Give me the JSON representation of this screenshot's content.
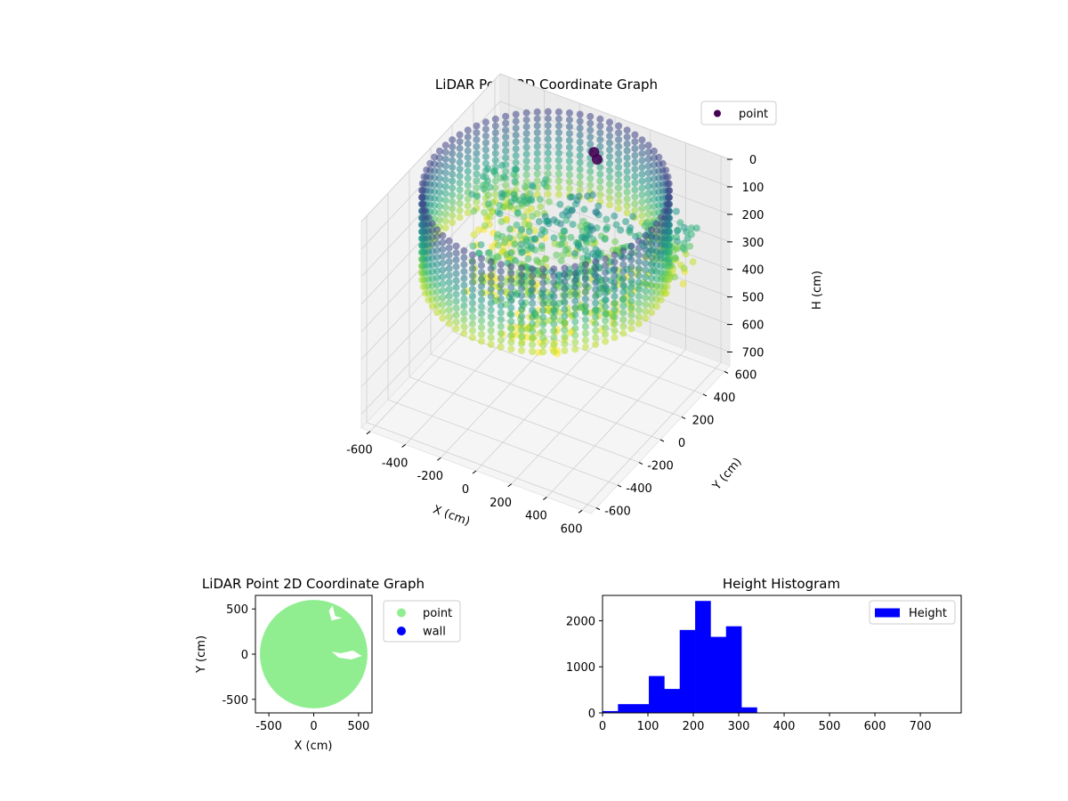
{
  "chart_data": [
    {
      "type": "scatter3d",
      "title": "LiDAR Point 3D Coordinate Graph",
      "xlabel": "X (cm)",
      "ylabel": "Y (cm)",
      "zlabel": "H (cm)",
      "xlim": [
        -650,
        650
      ],
      "ylim": [
        -650,
        650
      ],
      "zlim": [
        0,
        750
      ],
      "z_inverted": true,
      "xticks": [
        -600,
        -400,
        -200,
        0,
        200,
        400,
        600
      ],
      "yticks": [
        -600,
        -400,
        -200,
        0,
        200,
        400,
        600
      ],
      "zticks": [
        0,
        100,
        200,
        300,
        400,
        500,
        600,
        700
      ],
      "colormap": "viridis",
      "legend": [
        {
          "label": "point",
          "color": "#440154"
        }
      ],
      "legend_loc": "upper-right",
      "wall": {
        "radius": 600,
        "h_min": 0,
        "h_max": 300
      },
      "clusters": [
        {
          "x": -150,
          "y": -100,
          "h": 250
        },
        {
          "x": 100,
          "y": 150,
          "h": 200
        },
        {
          "x": 350,
          "y": -100,
          "h": 230
        },
        {
          "x": -350,
          "y": 250,
          "h": 260
        },
        {
          "x": 150,
          "y": -300,
          "h": 280
        },
        {
          "x": 450,
          "y": 300,
          "h": 240
        }
      ],
      "highlight_points": [
        {
          "x": 50,
          "y": 400,
          "h": 40
        },
        {
          "x": 20,
          "y": 420,
          "h": 30
        }
      ]
    },
    {
      "type": "scatter",
      "title": "LiDAR Point 2D Coordinate Graph",
      "xlabel": "X (cm)",
      "ylabel": "Y (cm)",
      "xlim": [
        -650,
        650
      ],
      "ylim": [
        -650,
        650
      ],
      "xticks": [
        -500,
        0,
        500
      ],
      "yticks": [
        -500,
        0,
        500
      ],
      "series": [
        {
          "name": "point",
          "color": "#90EE90",
          "shape": "disk",
          "radius": 600
        },
        {
          "name": "wall",
          "color": "#0000FF"
        }
      ],
      "legend_loc": "outside-right"
    },
    {
      "type": "bar",
      "title": "Height Histogram",
      "series_name": "Height",
      "color": "#0000FF",
      "bin_edges": [
        0,
        34,
        68,
        102,
        136,
        170,
        204,
        238,
        272,
        306,
        340
      ],
      "counts": [
        40,
        190,
        190,
        800,
        520,
        1800,
        2430,
        1650,
        1880,
        120
      ],
      "xlim": [
        0,
        790
      ],
      "ylim": [
        0,
        2550
      ],
      "xticks": [
        0,
        100,
        200,
        300,
        400,
        500,
        600,
        700
      ],
      "yticks": [
        0,
        1000,
        2000
      ],
      "legend_loc": "upper-right"
    }
  ]
}
